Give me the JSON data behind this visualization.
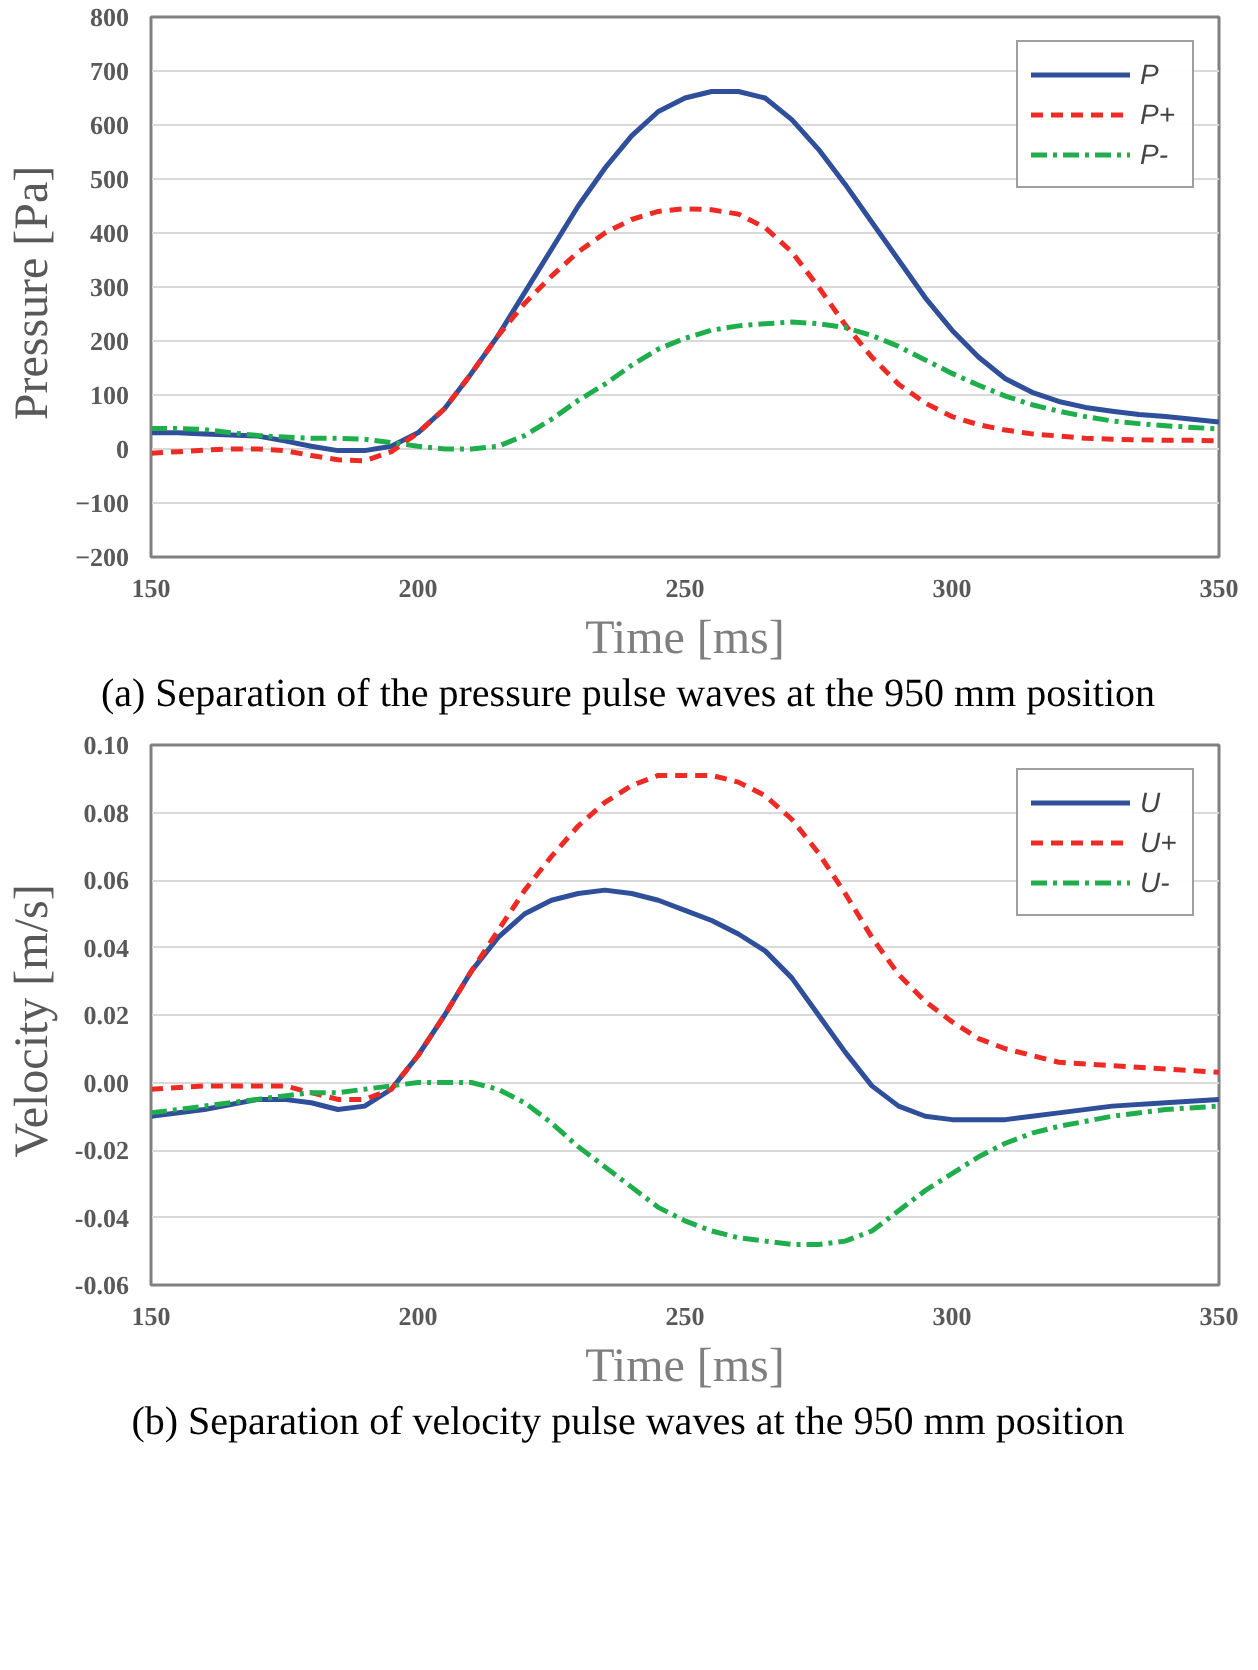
{
  "chart_data": [
    {
      "type": "line",
      "xlabel": "Time [ms]",
      "ylabel": "Pressure  [Pa]",
      "xlim": [
        150,
        350
      ],
      "xticks": [
        150,
        200,
        250,
        300,
        350
      ],
      "ylim": [
        -200,
        800
      ],
      "yticks": [
        -200,
        -100,
        0,
        100,
        200,
        300,
        400,
        500,
        600,
        700,
        800
      ],
      "grid": "y",
      "legend": "top right",
      "x": [
        150,
        155,
        160,
        165,
        170,
        175,
        180,
        185,
        190,
        195,
        200,
        205,
        210,
        215,
        220,
        225,
        230,
        235,
        240,
        245,
        250,
        255,
        260,
        265,
        270,
        275,
        280,
        285,
        290,
        295,
        300,
        305,
        310,
        315,
        320,
        325,
        330,
        335,
        340,
        345,
        350
      ],
      "series": [
        {
          "name": "P",
          "color": "#2f4f9a",
          "line_style": "solid",
          "values": [
            30,
            30,
            28,
            26,
            24,
            15,
            5,
            -3,
            -3,
            5,
            30,
            75,
            140,
            210,
            290,
            370,
            450,
            520,
            580,
            625,
            650,
            662,
            662,
            650,
            610,
            555,
            490,
            420,
            350,
            280,
            220,
            170,
            130,
            105,
            88,
            77,
            70,
            64,
            60,
            55,
            50
          ]
        },
        {
          "name": "P+",
          "color": "#ee2a24",
          "line_style": "dashed",
          "values": [
            -8,
            -5,
            -2,
            0,
            0,
            -3,
            -12,
            -20,
            -22,
            -5,
            30,
            75,
            140,
            210,
            270,
            320,
            365,
            400,
            425,
            440,
            445,
            443,
            435,
            410,
            365,
            300,
            230,
            170,
            120,
            85,
            60,
            45,
            35,
            28,
            24,
            20,
            18,
            17,
            16,
            16,
            15
          ]
        },
        {
          "name": "P-",
          "color": "#1fae4b",
          "line_style": "dashdot",
          "values": [
            38,
            38,
            36,
            30,
            25,
            22,
            20,
            20,
            18,
            12,
            5,
            0,
            0,
            5,
            25,
            55,
            90,
            120,
            155,
            185,
            205,
            220,
            228,
            232,
            235,
            232,
            225,
            210,
            190,
            165,
            140,
            118,
            98,
            82,
            70,
            60,
            52,
            47,
            43,
            40,
            37
          ]
        }
      ],
      "annotations": [
        "(a) Separation of the pressure pulse waves at the 950 mm position"
      ]
    },
    {
      "type": "line",
      "xlabel": "Time [ms]",
      "ylabel": "Velocity  [m/s]",
      "xlim": [
        150,
        350
      ],
      "xticks": [
        150,
        200,
        250,
        300,
        350
      ],
      "ylim": [
        -0.06,
        0.1
      ],
      "yticks": [
        {
          "value": -0.06,
          "label": "-0.06"
        },
        {
          "value": -0.04,
          "label": "-0.04"
        },
        {
          "value": -0.02,
          "label": "-0.02"
        },
        {
          "value": 0,
          "label": "0.00"
        },
        {
          "value": 0.02,
          "label": "0.02"
        },
        {
          "value": 0.04,
          "label": "0.04"
        },
        {
          "value": 0.06,
          "label": "0.06"
        },
        {
          "value": 0.08,
          "label": "0.08"
        },
        {
          "value": 0.1,
          "label": "0.10"
        }
      ],
      "grid": "y",
      "legend": "top right",
      "x": [
        150,
        160,
        170,
        175,
        180,
        185,
        190,
        195,
        200,
        205,
        210,
        215,
        220,
        225,
        230,
        235,
        240,
        245,
        250,
        255,
        260,
        265,
        270,
        275,
        280,
        285,
        290,
        295,
        300,
        305,
        310,
        315,
        320,
        330,
        340,
        350
      ],
      "series": [
        {
          "name": "U",
          "color": "#2f4f9a",
          "line_style": "solid",
          "values": [
            -0.01,
            -0.008,
            -0.005,
            -0.005,
            -0.006,
            -0.008,
            -0.007,
            -0.002,
            0.008,
            0.02,
            0.033,
            0.043,
            0.05,
            0.054,
            0.056,
            0.057,
            0.056,
            0.054,
            0.051,
            0.048,
            0.044,
            0.039,
            0.031,
            0.02,
            0.009,
            -0.001,
            -0.007,
            -0.01,
            -0.011,
            -0.011,
            -0.011,
            -0.01,
            -0.009,
            -0.007,
            -0.006,
            -0.005
          ]
        },
        {
          "name": "U+",
          "color": "#ee2a24",
          "line_style": "dashed",
          "values": [
            -0.002,
            -0.001,
            -0.001,
            -0.001,
            -0.003,
            -0.005,
            -0.005,
            -0.002,
            0.008,
            0.02,
            0.033,
            0.045,
            0.057,
            0.067,
            0.076,
            0.083,
            0.088,
            0.091,
            0.091,
            0.091,
            0.089,
            0.085,
            0.078,
            0.068,
            0.056,
            0.043,
            0.032,
            0.024,
            0.018,
            0.013,
            0.01,
            0.008,
            0.006,
            0.005,
            0.004,
            0.003
          ]
        },
        {
          "name": "U-",
          "color": "#1fae4b",
          "line_style": "dashdot",
          "x": [
            150,
            160,
            170,
            175,
            180,
            185,
            190,
            195,
            200,
            210,
            215,
            220,
            225,
            230,
            235,
            240,
            245,
            250,
            255,
            260,
            265,
            270,
            275,
            280,
            285,
            290,
            295,
            300,
            305,
            310,
            315,
            320,
            330,
            340,
            350
          ],
          "values": [
            -0.009,
            -0.007,
            -0.005,
            -0.004,
            -0.003,
            -0.003,
            -0.002,
            -0.001,
            0.0,
            0.0,
            -0.002,
            -0.006,
            -0.012,
            -0.019,
            -0.025,
            -0.031,
            -0.037,
            -0.041,
            -0.044,
            -0.046,
            -0.047,
            -0.048,
            -0.048,
            -0.047,
            -0.044,
            -0.038,
            -0.032,
            -0.027,
            -0.022,
            -0.018,
            -0.015,
            -0.013,
            -0.01,
            -0.008,
            -0.007
          ]
        }
      ],
      "annotations": [
        "(b) Separation of velocity pulse waves at the 950 mm position"
      ]
    }
  ]
}
